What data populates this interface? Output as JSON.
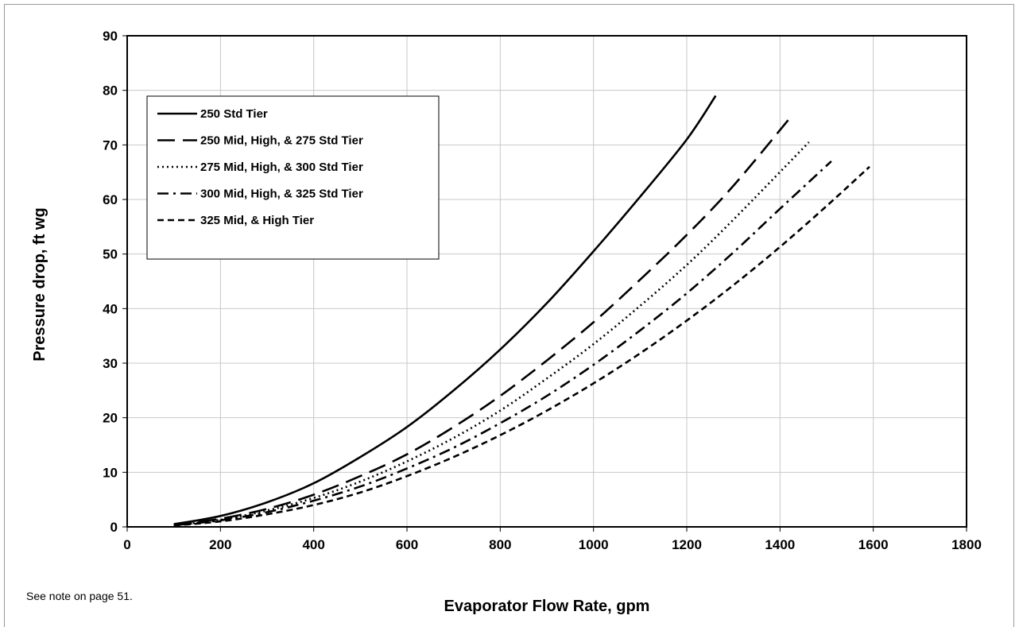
{
  "note": "See note on page 51.",
  "chart_data": {
    "type": "line",
    "xlabel": "Evaporator Flow Rate, gpm",
    "ylabel": "Pressure drop, ft wg",
    "xlim": [
      0,
      1800
    ],
    "ylim": [
      0,
      90
    ],
    "xticks": [
      0,
      200,
      400,
      600,
      800,
      1000,
      1200,
      1400,
      1600,
      1800
    ],
    "yticks": [
      0,
      10,
      20,
      30,
      40,
      50,
      60,
      70,
      80,
      90
    ],
    "grid": true,
    "legend_position": "top-left",
    "series": [
      {
        "name": "250 Std Tier",
        "dash": "solid",
        "x": [
          100,
          200,
          300,
          400,
          500,
          600,
          700,
          800,
          900,
          1000,
          1100,
          1200,
          1262
        ],
        "y": [
          0.5,
          2,
          4.5,
          8,
          12.8,
          18.3,
          25,
          32.5,
          41,
          50.5,
          60.5,
          71,
          79
        ]
      },
      {
        "name": "250 Mid, High, & 275 Std Tier",
        "dash": "longdash",
        "x": [
          100,
          200,
          300,
          400,
          500,
          600,
          700,
          800,
          900,
          1000,
          1100,
          1200,
          1300,
          1422
        ],
        "y": [
          0.4,
          1.5,
          3.3,
          5.9,
          9.3,
          13.3,
          18.3,
          24,
          30.5,
          37.5,
          45.3,
          53.5,
          62.5,
          75
        ]
      },
      {
        "name": "275 Mid, High, & 300 Std Tier",
        "dash": "dotted",
        "x": [
          100,
          200,
          300,
          400,
          500,
          600,
          700,
          800,
          900,
          1000,
          1100,
          1200,
          1300,
          1462
        ],
        "y": [
          0.35,
          1.3,
          3,
          5.3,
          8.3,
          12,
          16.3,
          21.3,
          27.2,
          33.5,
          40.5,
          48,
          56.3,
          70.5
        ]
      },
      {
        "name": "300 Mid, High, & 325 Std Tier",
        "dash": "dashdot",
        "x": [
          100,
          200,
          300,
          400,
          500,
          600,
          700,
          800,
          900,
          1000,
          1100,
          1200,
          1300,
          1400,
          1510
        ],
        "y": [
          0.3,
          1.2,
          2.7,
          4.8,
          7.4,
          10.7,
          14.5,
          19,
          24,
          29.7,
          36,
          42.8,
          50.3,
          58.3,
          67
        ]
      },
      {
        "name": "325 Mid, & High Tier",
        "dash": "shortdash",
        "x": [
          100,
          200,
          300,
          400,
          500,
          600,
          700,
          800,
          900,
          1000,
          1100,
          1200,
          1300,
          1400,
          1500,
          1592
        ],
        "y": [
          0.25,
          1,
          2.3,
          4,
          6.3,
          9.3,
          12.8,
          16.8,
          21.3,
          26.3,
          31.8,
          37.8,
          44.3,
          51.3,
          58.8,
          66
        ]
      }
    ]
  }
}
